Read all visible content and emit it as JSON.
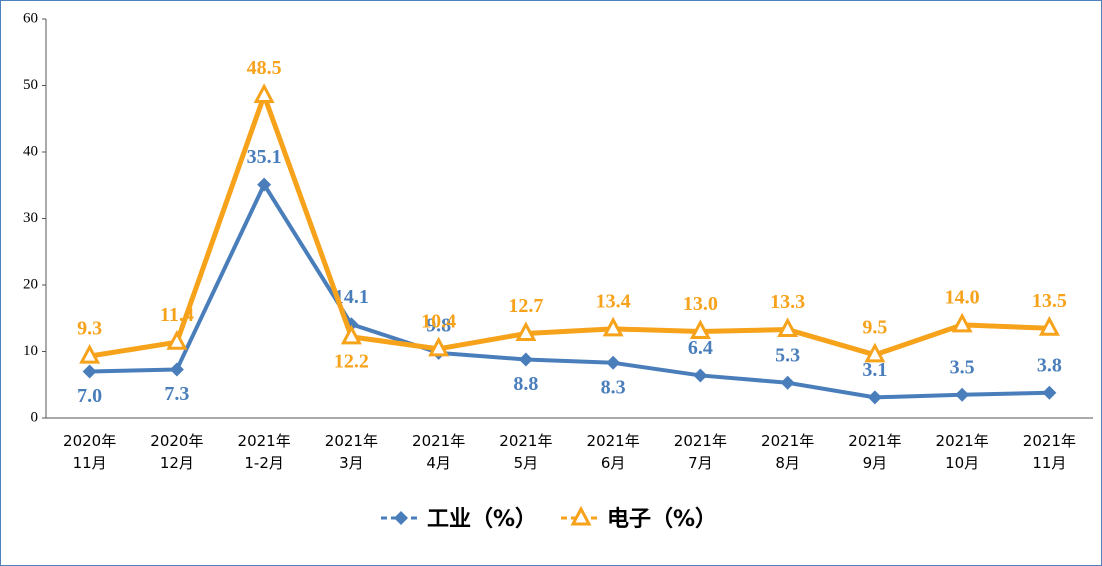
{
  "chart_data": {
    "type": "line",
    "categories": [
      "2020年\n11月",
      "2020年\n12月",
      "2021年\n1-2月",
      "2021年\n3月",
      "2021年\n4月",
      "2021年\n5月",
      "2021年\n6月",
      "2021年\n7月",
      "2021年\n8月",
      "2021年\n9月",
      "2021年\n10月",
      "2021年\n11月"
    ],
    "series": [
      {
        "name": "工业（%）",
        "color": "#4a7ebb",
        "marker": "diamond",
        "values": [
          7.0,
          7.3,
          35.1,
          14.1,
          9.8,
          8.8,
          8.3,
          6.4,
          5.3,
          3.1,
          3.5,
          3.8
        ],
        "value_labels": [
          "7.0",
          "7.3",
          "35.1",
          "14.1",
          "9.8",
          "8.8",
          "8.3",
          "6.4",
          "5.3",
          "3.1",
          "3.5",
          "3.8"
        ]
      },
      {
        "name": "电子（%）",
        "color": "#f7a21b",
        "marker": "triangle",
        "values": [
          9.3,
          11.4,
          48.5,
          12.2,
          10.4,
          12.7,
          13.4,
          13.0,
          13.3,
          9.5,
          14.0,
          13.5
        ],
        "value_labels": [
          "9.3",
          "11.4",
          "48.5",
          "12.2",
          "10.4",
          "12.7",
          "13.4",
          "13.0",
          "13.3",
          "9.5",
          "14.0",
          "13.5"
        ]
      }
    ],
    "ylim": [
      0,
      60
    ],
    "yticks": [
      0,
      10,
      20,
      30,
      40,
      50,
      60
    ],
    "grid": false
  }
}
